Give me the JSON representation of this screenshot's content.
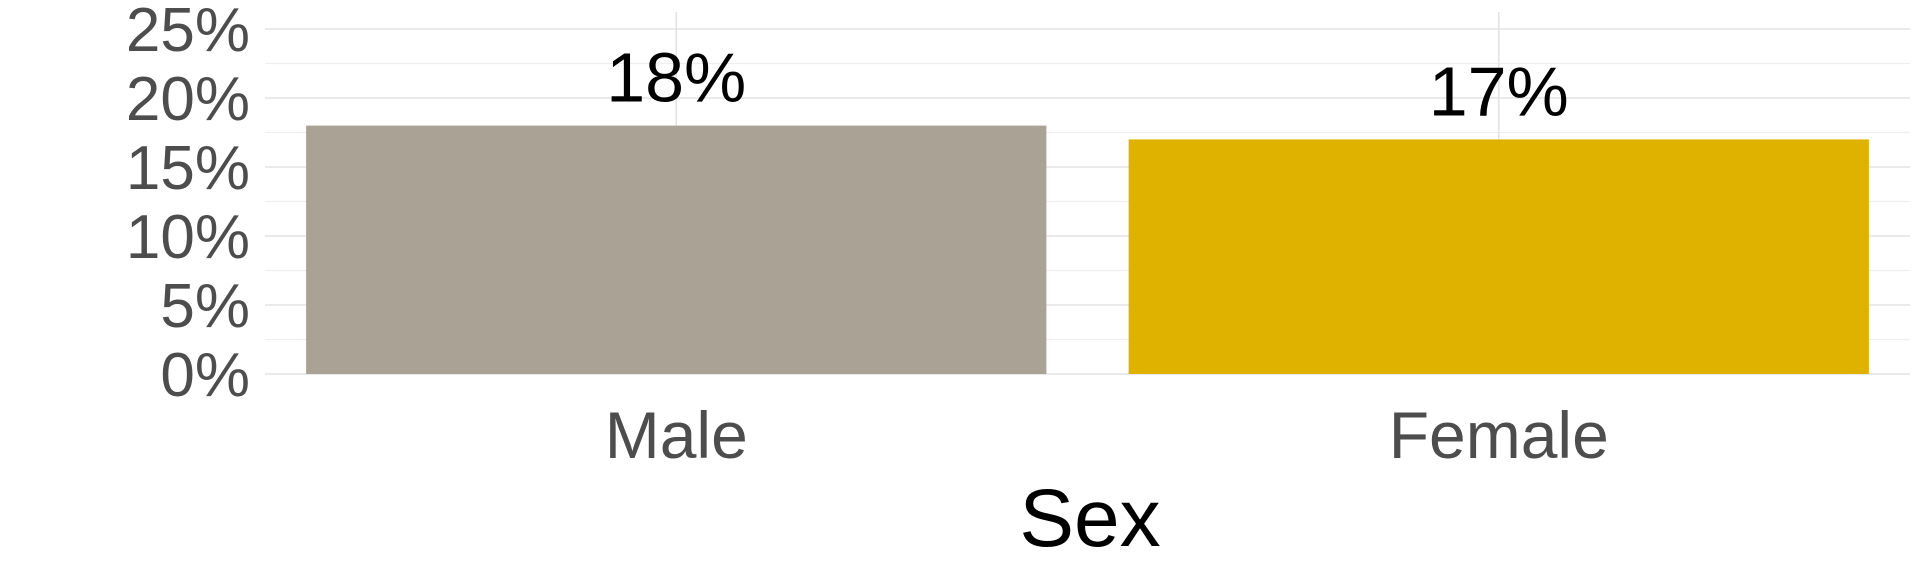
{
  "chart_data": {
    "type": "bar",
    "categories": [
      "Male",
      "Female"
    ],
    "values": [
      0.18,
      0.17
    ],
    "value_labels": [
      "18%",
      "17%"
    ],
    "colors": [
      "#aaa395",
      "#e0b200"
    ],
    "xlabel": "Sex",
    "ylabel": "",
    "ylim": [
      0,
      0.25
    ],
    "yticks": [
      0,
      0.05,
      0.1,
      0.15,
      0.2,
      0.25
    ],
    "ytick_labels": [
      "0%",
      "5%",
      "10%",
      "15%",
      "20%",
      "25%"
    ],
    "grid": true,
    "legend": "none"
  }
}
